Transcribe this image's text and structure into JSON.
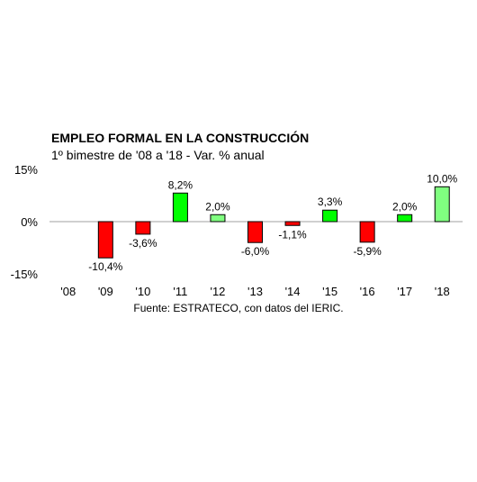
{
  "chart_data": {
    "type": "bar",
    "title": "EMPLEO FORMAL EN LA CONSTRUCCIÓN",
    "subtitle": "1º bimestre de '08 a '18 - Var. % anual",
    "source": "Fuente: ESTRATECO, con datos del IERIC.",
    "categories": [
      "'08",
      "'09",
      "'10",
      "'11",
      "'12",
      "'13",
      "'14",
      "'15",
      "'16",
      "'17",
      "'18"
    ],
    "values": [
      null,
      -10.4,
      -3.6,
      8.2,
      2.0,
      -6.0,
      -1.1,
      3.3,
      -5.9,
      2.0,
      10.0
    ],
    "data_labels": [
      "",
      "-10,4%",
      "-3,6%",
      "8,2%",
      "2,0%",
      "-6,0%",
      "-1,1%",
      "3,3%",
      "-5,9%",
      "2,0%",
      "10,0%"
    ],
    "ylim": [
      -15,
      15
    ],
    "yticks": [
      15,
      0,
      -15
    ],
    "ytick_labels": [
      "15%",
      "0%",
      "-15%"
    ],
    "grid": false,
    "legend": "none",
    "colors": {
      "negative": "#ff0000",
      "positive": "#00ff00",
      "positive_light": "#80ff80",
      "outline": "#000000",
      "axis": "#a0a0a0"
    },
    "bar_colors": [
      "",
      "#ff0000",
      "#ff0000",
      "#00ff00",
      "#80ff80",
      "#ff0000",
      "#ff0000",
      "#00ff00",
      "#ff0000",
      "#00ff00",
      "#80ff80"
    ]
  }
}
